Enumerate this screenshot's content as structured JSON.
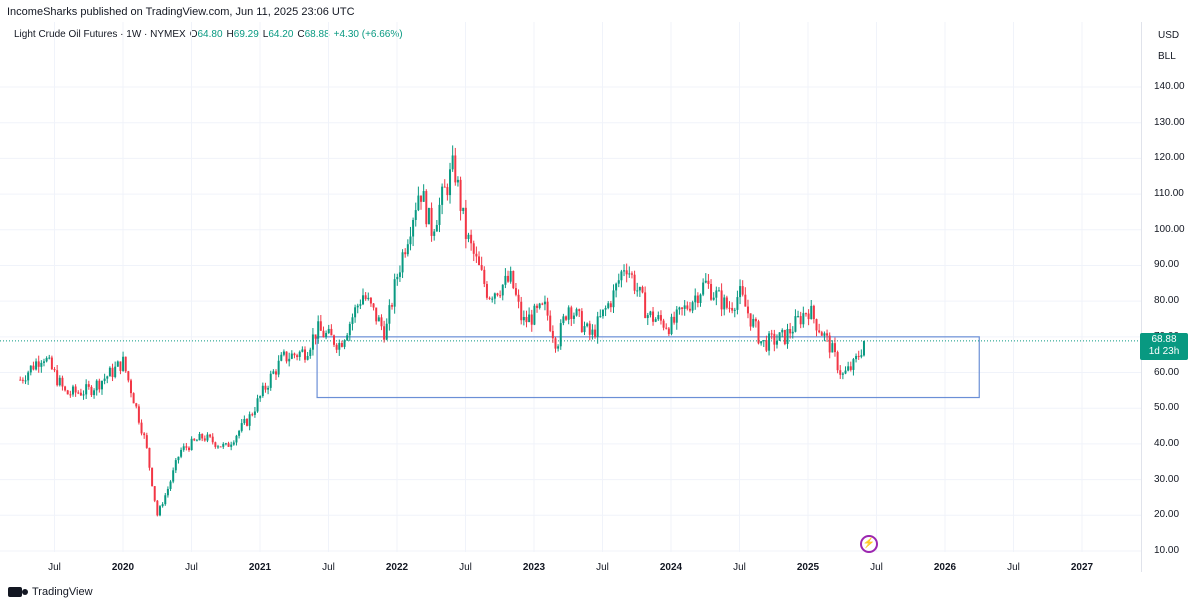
{
  "header": {
    "publisher": "IncomeSharks published on TradingView.com, Jun 11, 2025 23:06 UTC"
  },
  "legend": {
    "symbol": "Light Crude Oil Futures · 1W · NYMEX",
    "o_label": "O",
    "o": "64.80",
    "h_label": "H",
    "h": "69.29",
    "l_label": "L",
    "l": "64.20",
    "c_label": "C",
    "c": "68.88",
    "change": "+4.30 (+6.66%)"
  },
  "scale": {
    "unit1": "USD",
    "unit2": "BLL",
    "ticks": [
      "140.00",
      "130.00",
      "120.00",
      "110.00",
      "100.00",
      "90.00",
      "80.00",
      "70.00",
      "60.00",
      "50.00",
      "40.00",
      "30.00",
      "20.00",
      "10.00"
    ],
    "last_price": "68.88",
    "countdown": "1d 23h"
  },
  "time_axis": [
    "Jul",
    "2020",
    "Jul",
    "2021",
    "Jul",
    "2022",
    "Jul",
    "2023",
    "Jul",
    "2024",
    "Jul",
    "2025",
    "Jul",
    "2026",
    "Jul",
    "2027"
  ],
  "colors": {
    "up": "#089981",
    "down": "#f23645",
    "box": "#6b8fd6",
    "tag": "#089981",
    "bolt": "#9c27b0"
  },
  "icons": {
    "alert": "lightning-icon",
    "logo": "tradingview-logo"
  },
  "footer": {
    "brand": "TradingView"
  },
  "chart_data": {
    "type": "candlestick",
    "x_range": [
      "2019-04",
      "2027-06"
    ],
    "ylim": [
      10,
      140
    ],
    "last_close": 68.88,
    "price_path": [
      [
        "2019-04",
        58
      ],
      [
        "2019-06",
        65
      ],
      [
        "2019-08",
        54
      ],
      [
        "2019-10",
        55
      ],
      [
        "2019-12",
        60
      ],
      [
        "2020-01",
        63
      ],
      [
        "2020-02",
        52
      ],
      [
        "2020-03",
        40
      ],
      [
        "2020-04",
        20
      ],
      [
        "2020-05",
        28
      ],
      [
        "2020-06",
        38
      ],
      [
        "2020-08",
        42
      ],
      [
        "2020-10",
        39
      ],
      [
        "2020-12",
        47
      ],
      [
        "2021-02",
        59
      ],
      [
        "2021-03",
        64
      ],
      [
        "2021-05",
        66
      ],
      [
        "2021-06",
        72
      ],
      [
        "2021-08",
        68
      ],
      [
        "2021-10",
        82
      ],
      [
        "2021-12",
        71
      ],
      [
        "2022-01",
        87
      ],
      [
        "2022-03",
        112
      ],
      [
        "2022-04",
        100
      ],
      [
        "2022-06",
        118
      ],
      [
        "2022-07",
        99
      ],
      [
        "2022-09",
        82
      ],
      [
        "2022-11",
        86
      ],
      [
        "2022-12",
        74
      ],
      [
        "2023-02",
        78
      ],
      [
        "2023-03",
        68
      ],
      [
        "2023-04",
        79
      ],
      [
        "2023-06",
        70
      ],
      [
        "2023-08",
        82
      ],
      [
        "2023-09",
        91
      ],
      [
        "2023-11",
        76
      ],
      [
        "2024-01",
        73
      ],
      [
        "2024-04",
        85
      ],
      [
        "2024-06",
        78
      ],
      [
        "2024-07",
        82
      ],
      [
        "2024-09",
        68
      ],
      [
        "2024-11",
        70
      ],
      [
        "2025-01",
        78
      ],
      [
        "2025-03",
        67
      ],
      [
        "2025-04",
        59
      ],
      [
        "2025-05",
        62
      ],
      [
        "2025-06",
        68.88
      ]
    ],
    "annotation_box": {
      "x_start": "2021-06",
      "x_end": "2026-04",
      "y_low": 53,
      "y_high": 70
    }
  }
}
